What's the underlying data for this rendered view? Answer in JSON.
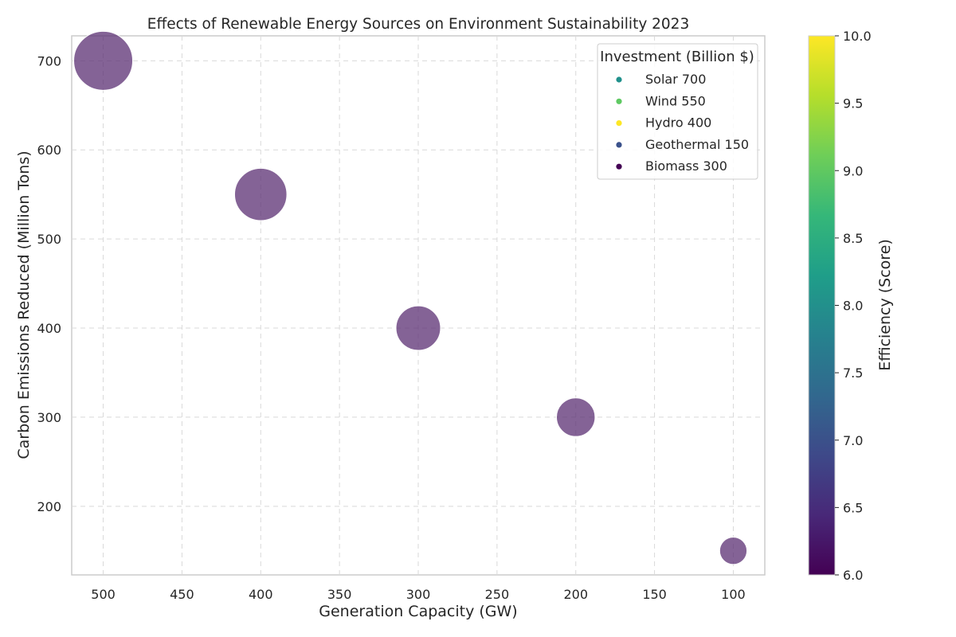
{
  "chart_data": {
    "type": "scatter",
    "title": "Effects of Renewable Energy Sources on Environment Sustainability 2023",
    "xlabel": "Generation Capacity (GW)",
    "ylabel": "Carbon Emissions Reduced (Million Tons)",
    "x_axis_inverted": true,
    "xlim": [
      520,
      80
    ],
    "ylim": [
      123,
      728
    ],
    "xticks": [
      500,
      450,
      400,
      350,
      300,
      250,
      200,
      150,
      100
    ],
    "yticks": [
      200,
      300,
      400,
      500,
      600,
      700
    ],
    "grid": true,
    "grid_style": "dashed",
    "points": [
      {
        "x": 500,
        "y": 700,
        "size": 700,
        "efficiency": 6.5
      },
      {
        "x": 400,
        "y": 550,
        "size": 550,
        "efficiency": 6.5
      },
      {
        "x": 300,
        "y": 400,
        "size": 400,
        "efficiency": 6.5
      },
      {
        "x": 200,
        "y": 300,
        "size": 300,
        "efficiency": 6.5
      },
      {
        "x": 100,
        "y": 150,
        "size": 150,
        "efficiency": 6.5
      }
    ],
    "point_color": "#5b2f73",
    "point_opacity": 0.75,
    "legend": {
      "title": "Investment (Billion $)",
      "placement": "top-right",
      "entries": [
        {
          "label": "Solar 700",
          "color": "#21918c"
        },
        {
          "label": "Wind 550",
          "color": "#5ec962"
        },
        {
          "label": "Hydro 400",
          "color": "#fde725"
        },
        {
          "label": "Geothermal 150",
          "color": "#3b528b"
        },
        {
          "label": "Biomass 300",
          "color": "#440154"
        }
      ]
    },
    "colorbar": {
      "label": "Efficiency (Score)",
      "range": [
        6.0,
        10.0
      ],
      "ticks": [
        "6.0",
        "6.5",
        "7.0",
        "7.5",
        "8.0",
        "8.5",
        "9.0",
        "9.5",
        "10.0"
      ],
      "colormap": "viridis",
      "colors": [
        "#440154",
        "#482878",
        "#3e4989",
        "#31688e",
        "#26828e",
        "#1f9e89",
        "#35b779",
        "#6ece58",
        "#b5de2b",
        "#fde725"
      ]
    }
  }
}
